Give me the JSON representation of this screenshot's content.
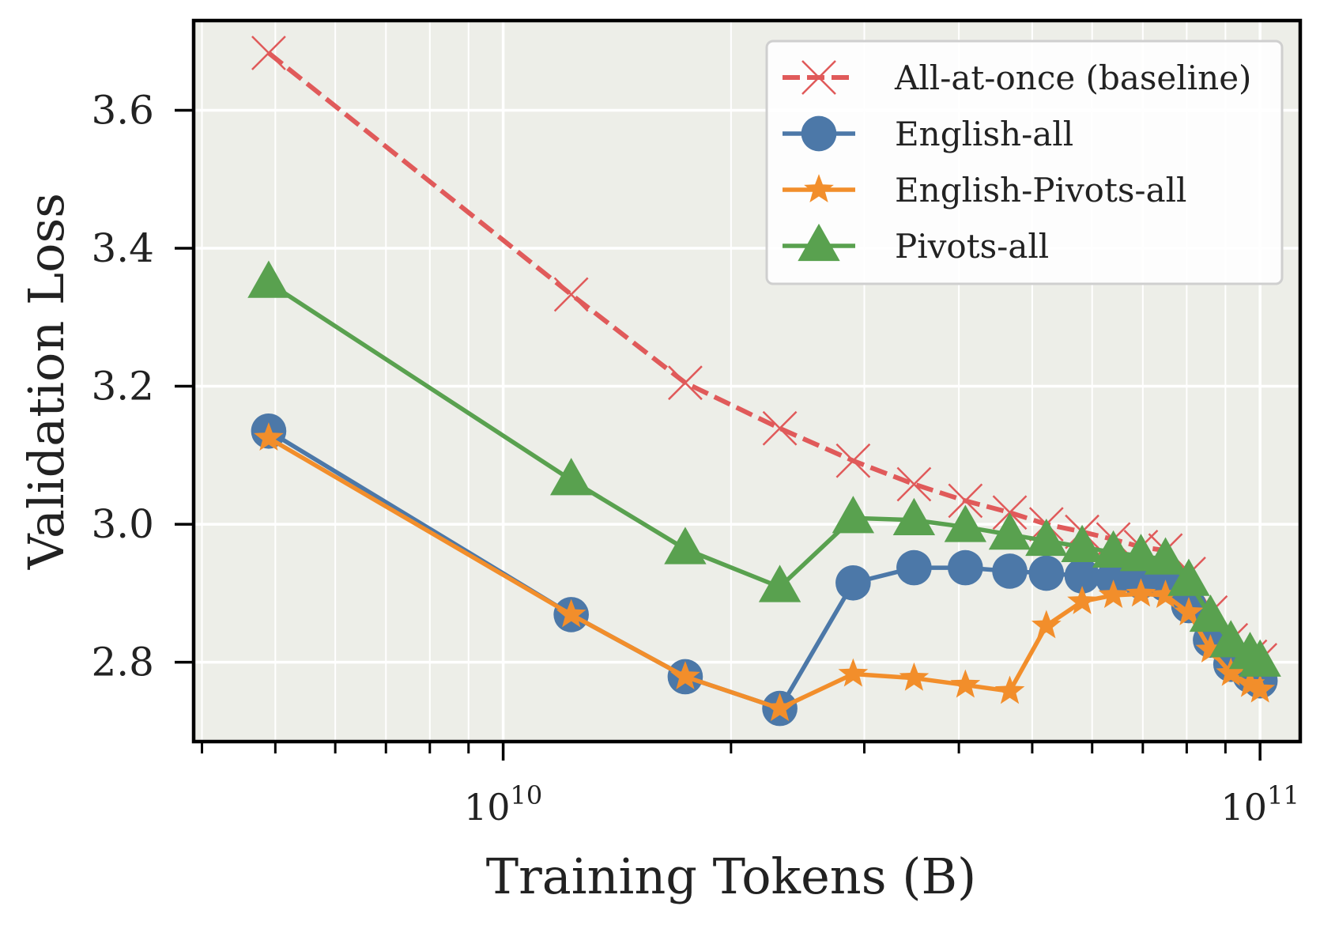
{
  "chart_data": {
    "type": "line",
    "xlabel": "Training Tokens (B)",
    "ylabel": "Validation Loss",
    "xscale": "log",
    "xlim": [
      3900000000.0,
      113000000000.0
    ],
    "ylim": [
      2.685,
      3.73
    ],
    "grid": true,
    "legend_position": "top-right",
    "background_color": "#edeee8",
    "x_tick_labels": [
      {
        "value": 10000000000.0,
        "base": "10",
        "exp": "10"
      },
      {
        "value": 100000000000.0,
        "base": "10",
        "exp": "11"
      }
    ],
    "y_ticks": [
      2.8,
      3.0,
      3.2,
      3.4,
      3.6
    ],
    "y_tick_labels": [
      "2.8",
      "3.0",
      "3.2",
      "3.4",
      "3.6"
    ],
    "series": [
      {
        "name": "All-at-once (baseline)",
        "color": "#e05a5a",
        "marker": "x",
        "dashed": true,
        "points": [
          [
            4900000000.0,
            3.683
          ],
          [
            12300000000.0,
            3.333
          ],
          [
            17400000000.0,
            3.205
          ],
          [
            23200000000.0,
            3.139
          ],
          [
            29000000000.0,
            3.092
          ],
          [
            34900000000.0,
            3.058
          ],
          [
            40800000000.0,
            3.034
          ],
          [
            46700000000.0,
            3.017
          ],
          [
            52200000000.0,
            3.0
          ],
          [
            58200000000.0,
            2.989
          ],
          [
            64000000000.0,
            2.978
          ],
          [
            69600000000.0,
            2.967
          ],
          [
            75000000000.0,
            2.962
          ],
          [
            80500000000.0,
            2.928
          ],
          [
            86000000000.0,
            2.872
          ],
          [
            91500000000.0,
            2.832
          ],
          [
            97000000000.0,
            2.808
          ],
          [
            100000000000.0,
            2.803
          ]
        ]
      },
      {
        "name": "English-all",
        "color": "#4c78a8",
        "marker": "circle",
        "dashed": false,
        "points": [
          [
            4900000000.0,
            3.135
          ],
          [
            12300000000.0,
            2.869
          ],
          [
            17400000000.0,
            2.779
          ],
          [
            23200000000.0,
            2.733
          ],
          [
            29000000000.0,
            2.915
          ],
          [
            34900000000.0,
            2.937
          ],
          [
            40800000000.0,
            2.937
          ],
          [
            46700000000.0,
            2.932
          ],
          [
            52200000000.0,
            2.929
          ],
          [
            58200000000.0,
            2.925
          ],
          [
            64000000000.0,
            2.921
          ],
          [
            69600000000.0,
            2.917
          ],
          [
            75000000000.0,
            2.913
          ],
          [
            80500000000.0,
            2.882
          ],
          [
            86000000000.0,
            2.832
          ],
          [
            91500000000.0,
            2.797
          ],
          [
            97000000000.0,
            2.781
          ],
          [
            100000000000.0,
            2.773
          ]
        ]
      },
      {
        "name": "English-Pivots-all",
        "color": "#f28e2b",
        "marker": "star",
        "dashed": false,
        "points": [
          [
            4900000000.0,
            3.125
          ],
          [
            12300000000.0,
            2.869
          ],
          [
            17400000000.0,
            2.779
          ],
          [
            23200000000.0,
            2.733
          ],
          [
            29000000000.0,
            2.783
          ],
          [
            34900000000.0,
            2.777
          ],
          [
            40800000000.0,
            2.767
          ],
          [
            46700000000.0,
            2.758
          ],
          [
            52200000000.0,
            2.853
          ],
          [
            58200000000.0,
            2.888
          ],
          [
            64000000000.0,
            2.897
          ],
          [
            69600000000.0,
            2.899
          ],
          [
            75000000000.0,
            2.897
          ],
          [
            80500000000.0,
            2.872
          ],
          [
            86000000000.0,
            2.818
          ],
          [
            91500000000.0,
            2.784
          ],
          [
            97000000000.0,
            2.768
          ],
          [
            100000000000.0,
            2.76
          ]
        ]
      },
      {
        "name": "Pivots-all",
        "color": "#59a14f",
        "marker": "triangle",
        "dashed": false,
        "points": [
          [
            4900000000.0,
            3.35
          ],
          [
            12300000000.0,
            3.064
          ],
          [
            17400000000.0,
            2.964
          ],
          [
            23200000000.0,
            2.909
          ],
          [
            29000000000.0,
            3.009
          ],
          [
            34900000000.0,
            3.006
          ],
          [
            40800000000.0,
            2.996
          ],
          [
            46700000000.0,
            2.985
          ],
          [
            52200000000.0,
            2.976
          ],
          [
            58200000000.0,
            2.967
          ],
          [
            64000000000.0,
            2.959
          ],
          [
            69600000000.0,
            2.954
          ],
          [
            75000000000.0,
            2.949
          ],
          [
            80500000000.0,
            2.918
          ],
          [
            86000000000.0,
            2.866
          ],
          [
            91500000000.0,
            2.829
          ],
          [
            97000000000.0,
            2.812
          ],
          [
            100000000000.0,
            2.801
          ]
        ]
      }
    ]
  }
}
